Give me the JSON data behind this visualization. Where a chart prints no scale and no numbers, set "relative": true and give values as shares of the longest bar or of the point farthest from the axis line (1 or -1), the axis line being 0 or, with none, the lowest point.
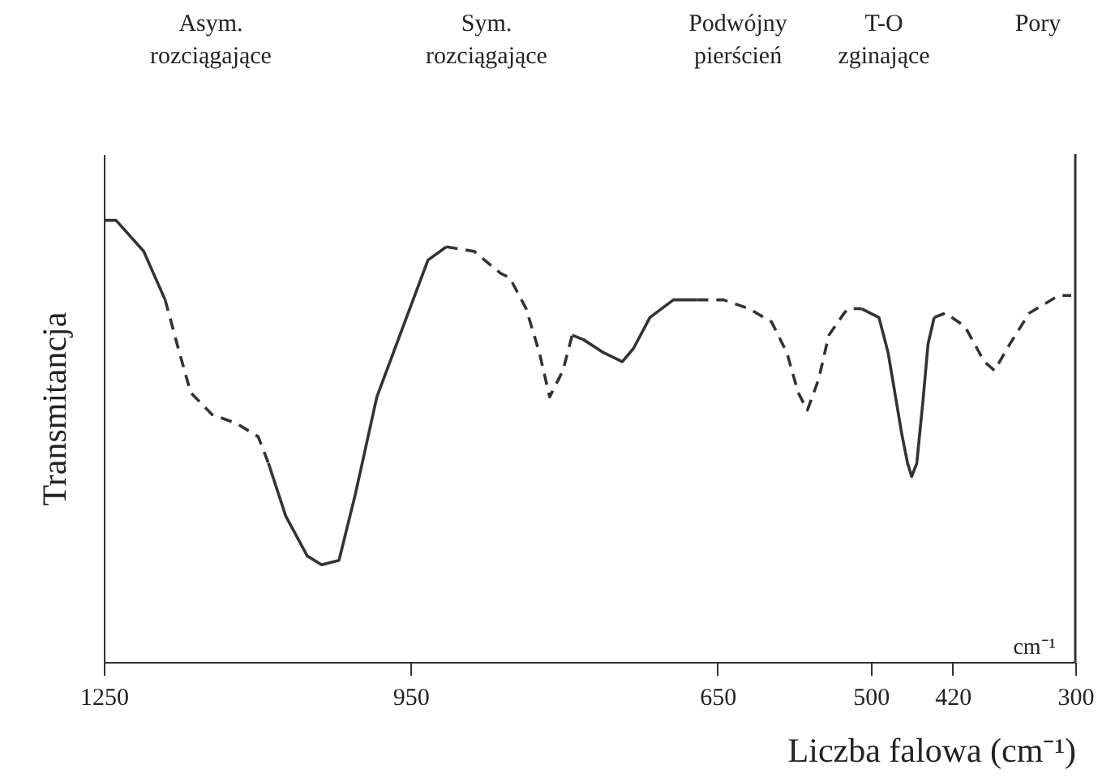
{
  "chart_data": {
    "type": "line",
    "relative": true,
    "xlabel": "Liczba falowa (cm⁻¹)",
    "ylabel": "Transmitancja",
    "xlim": [
      1250,
      300
    ],
    "xticks": [
      1250,
      950,
      650,
      500,
      420,
      300
    ],
    "grid": false,
    "marker": "none",
    "x": [
      1250,
      1238,
      1211,
      1190,
      1176,
      1165,
      1144,
      1120,
      1099,
      1089,
      1072,
      1051,
      1037,
      1020,
      1004,
      983,
      954,
      933,
      915,
      888,
      862,
      853,
      837,
      824,
      814,
      801,
      792,
      781,
      761,
      743,
      732,
      716,
      693,
      670,
      644,
      619,
      597,
      582,
      571,
      562,
      551,
      541,
      526,
      522,
      509,
      492,
      483,
      475,
      470,
      464,
      460,
      455,
      449,
      444,
      438,
      427,
      408,
      389,
      379,
      364,
      345,
      316,
      304
    ],
    "series": [
      {
        "color": "#333333",
        "line_style": "solid",
        "values": [
          1.0,
          1.0,
          0.93,
          0.82,
          null,
          null,
          null,
          null,
          null,
          0.45,
          0.33,
          0.24,
          0.22,
          0.23,
          0.38,
          0.6,
          0.78,
          0.91,
          0.94,
          null,
          null,
          null,
          null,
          null,
          null,
          null,
          0.74,
          0.73,
          0.7,
          0.68,
          0.71,
          0.78,
          0.82,
          0.82,
          null,
          null,
          null,
          null,
          null,
          null,
          null,
          null,
          null,
          null,
          0.8,
          0.78,
          0.7,
          0.59,
          0.52,
          0.45,
          0.42,
          0.45,
          0.59,
          0.72,
          0.78,
          null,
          null,
          null,
          null,
          null,
          null,
          null,
          null
        ]
      },
      {
        "color": "#333333",
        "line_style": "dashed",
        "values": [
          null,
          null,
          null,
          0.82,
          0.7,
          0.61,
          0.56,
          0.54,
          0.51,
          0.45,
          null,
          null,
          null,
          null,
          null,
          null,
          null,
          null,
          0.94,
          0.93,
          0.88,
          0.87,
          0.8,
          0.7,
          0.6,
          0.66,
          0.74,
          null,
          null,
          null,
          null,
          null,
          null,
          0.82,
          0.82,
          0.8,
          0.77,
          0.7,
          0.61,
          0.57,
          0.64,
          0.74,
          0.79,
          0.8,
          0.8,
          null,
          null,
          null,
          null,
          null,
          null,
          null,
          null,
          null,
          0.78,
          0.79,
          0.76,
          0.68,
          0.66,
          0.72,
          0.79,
          0.83,
          0.83
        ]
      }
    ],
    "annotations": [
      "Asym.\nrozciągające",
      "Sym.\nrozciągające",
      "Podwójny\npierścień",
      "T-O\nzginające",
      "Pory",
      "cm⁻¹"
    ]
  }
}
